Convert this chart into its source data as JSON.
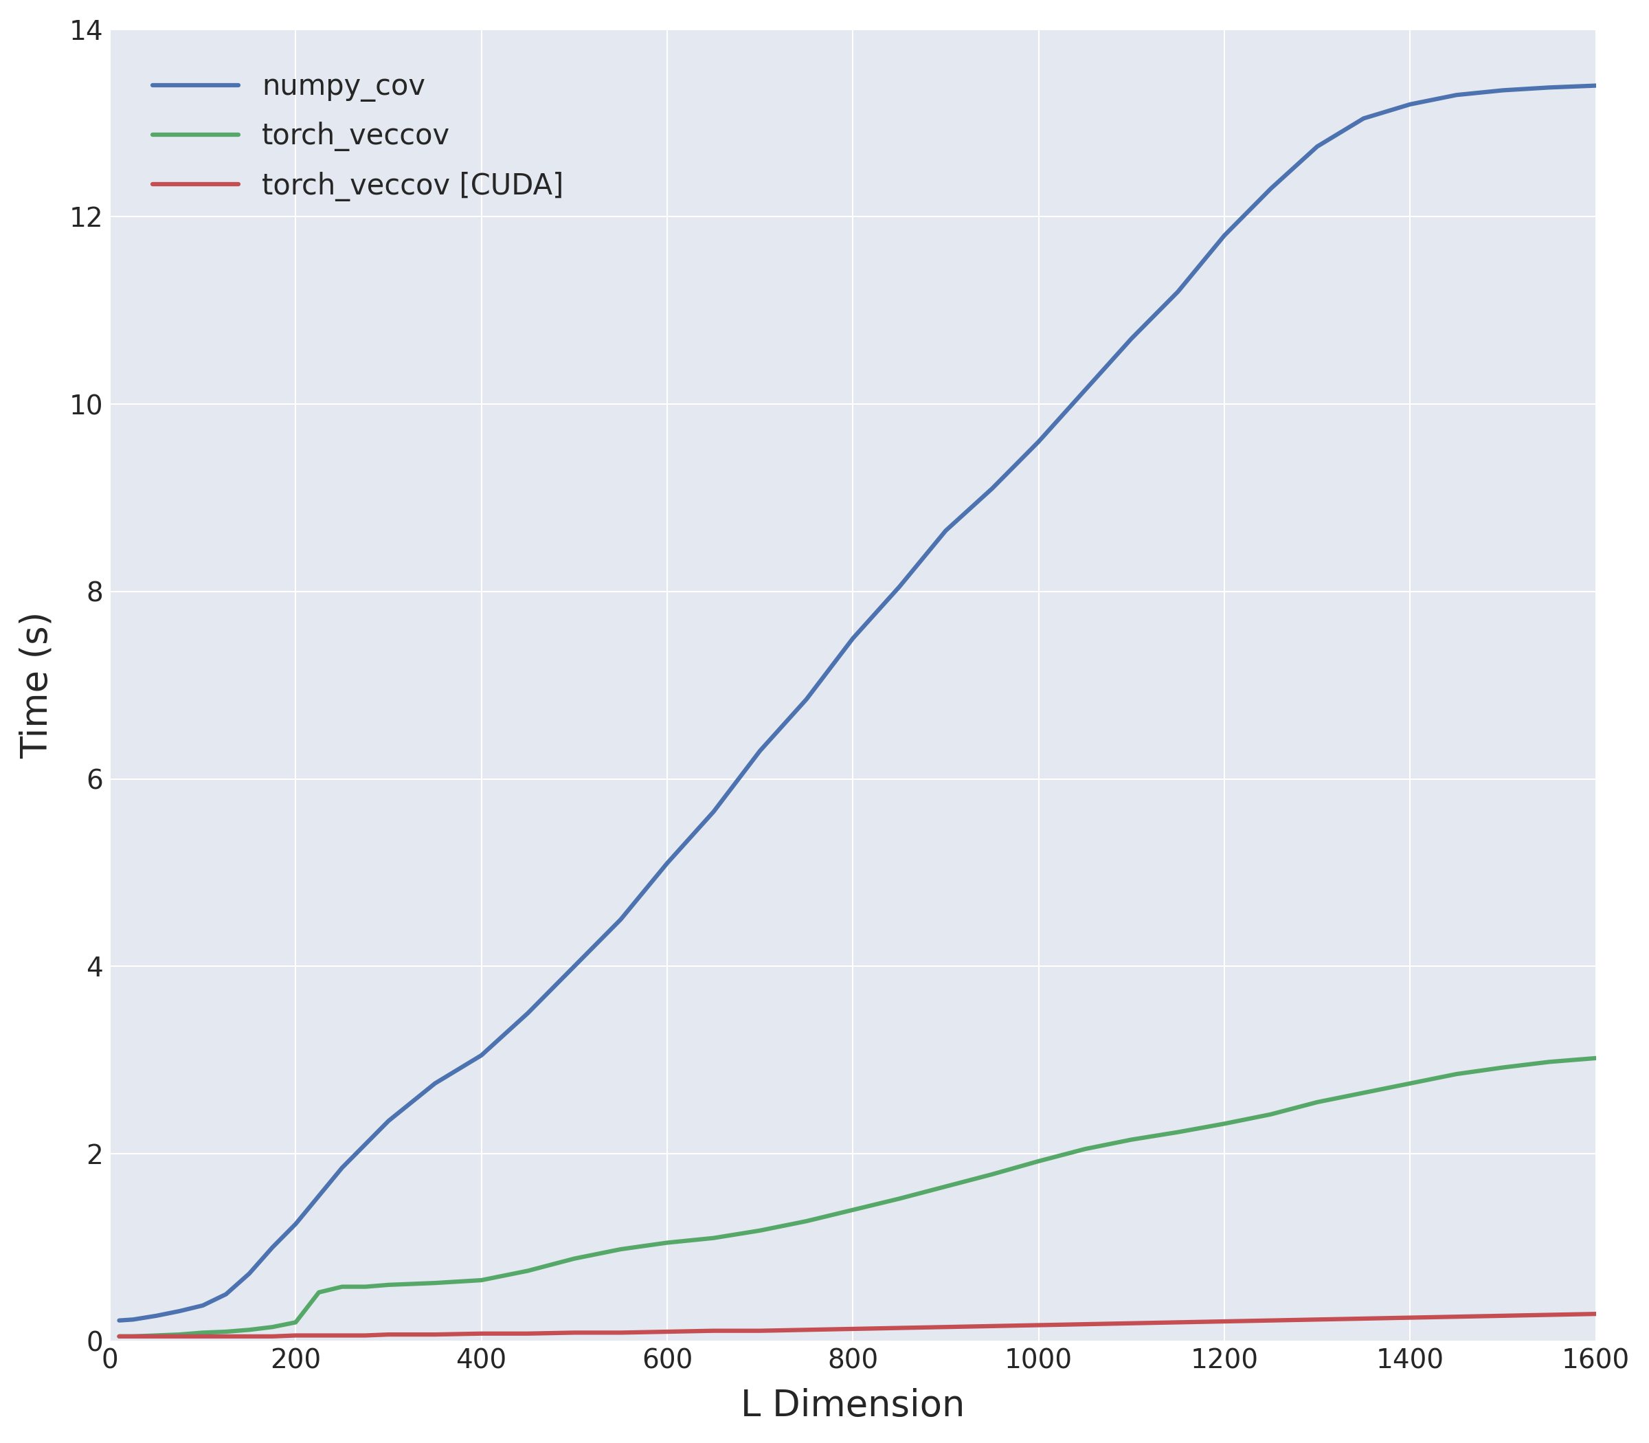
{
  "xlabel": "L Dimension",
  "ylabel": "Time (s)",
  "xlim": [
    0,
    1600
  ],
  "ylim": [
    0,
    14
  ],
  "xticks": [
    0,
    200,
    400,
    600,
    800,
    1000,
    1200,
    1400,
    1600
  ],
  "yticks": [
    0,
    2,
    4,
    6,
    8,
    10,
    12,
    14
  ],
  "axes_background": "#E4E8F0",
  "grid_color": "#FFFFFF",
  "series": [
    {
      "label": "numpy_cov",
      "color": "#4C72B0",
      "linewidth": 4.5,
      "x": [
        10,
        25,
        50,
        75,
        100,
        125,
        150,
        175,
        200,
        225,
        250,
        275,
        300,
        350,
        400,
        450,
        500,
        550,
        600,
        650,
        700,
        750,
        800,
        850,
        900,
        950,
        1000,
        1050,
        1100,
        1150,
        1200,
        1250,
        1300,
        1350,
        1400,
        1450,
        1500,
        1550,
        1600
      ],
      "y": [
        0.22,
        0.23,
        0.27,
        0.32,
        0.38,
        0.5,
        0.72,
        1.0,
        1.25,
        1.55,
        1.85,
        2.1,
        2.35,
        2.75,
        3.05,
        3.5,
        4.0,
        4.5,
        5.1,
        5.65,
        6.3,
        6.85,
        7.5,
        8.05,
        8.65,
        9.1,
        9.6,
        10.15,
        10.7,
        11.2,
        11.8,
        12.3,
        12.75,
        13.05,
        13.2,
        13.3,
        13.35,
        13.38,
        13.4
      ]
    },
    {
      "label": "torch_veccov",
      "color": "#55A868",
      "linewidth": 4.5,
      "x": [
        10,
        25,
        50,
        75,
        100,
        125,
        150,
        175,
        200,
        225,
        250,
        275,
        300,
        350,
        400,
        450,
        500,
        550,
        600,
        650,
        700,
        750,
        800,
        850,
        900,
        950,
        1000,
        1050,
        1100,
        1150,
        1200,
        1250,
        1300,
        1350,
        1400,
        1450,
        1500,
        1550,
        1600
      ],
      "y": [
        0.05,
        0.05,
        0.06,
        0.07,
        0.09,
        0.1,
        0.12,
        0.15,
        0.2,
        0.52,
        0.58,
        0.58,
        0.6,
        0.62,
        0.65,
        0.75,
        0.88,
        0.98,
        1.05,
        1.1,
        1.18,
        1.28,
        1.4,
        1.52,
        1.65,
        1.78,
        1.92,
        2.05,
        2.15,
        2.23,
        2.32,
        2.42,
        2.55,
        2.65,
        2.75,
        2.85,
        2.92,
        2.98,
        3.02
      ]
    },
    {
      "label": "torch_veccov [CUDA]",
      "color": "#C44E52",
      "linewidth": 4.5,
      "x": [
        10,
        25,
        50,
        75,
        100,
        125,
        150,
        175,
        200,
        225,
        250,
        275,
        300,
        350,
        400,
        450,
        500,
        550,
        600,
        650,
        700,
        750,
        800,
        850,
        900,
        950,
        1000,
        1050,
        1100,
        1150,
        1200,
        1250,
        1300,
        1350,
        1400,
        1450,
        1500,
        1550,
        1600
      ],
      "y": [
        0.05,
        0.05,
        0.05,
        0.05,
        0.05,
        0.05,
        0.05,
        0.05,
        0.06,
        0.06,
        0.06,
        0.06,
        0.07,
        0.07,
        0.08,
        0.08,
        0.09,
        0.09,
        0.1,
        0.11,
        0.11,
        0.12,
        0.13,
        0.14,
        0.15,
        0.16,
        0.17,
        0.18,
        0.19,
        0.2,
        0.21,
        0.22,
        0.23,
        0.24,
        0.25,
        0.26,
        0.27,
        0.28,
        0.29
      ]
    }
  ],
  "legend_fontsize": 30,
  "axis_label_fontsize": 38,
  "tick_fontsize": 28,
  "legend_handlelength": 3.0,
  "legend_labelspacing": 0.7
}
